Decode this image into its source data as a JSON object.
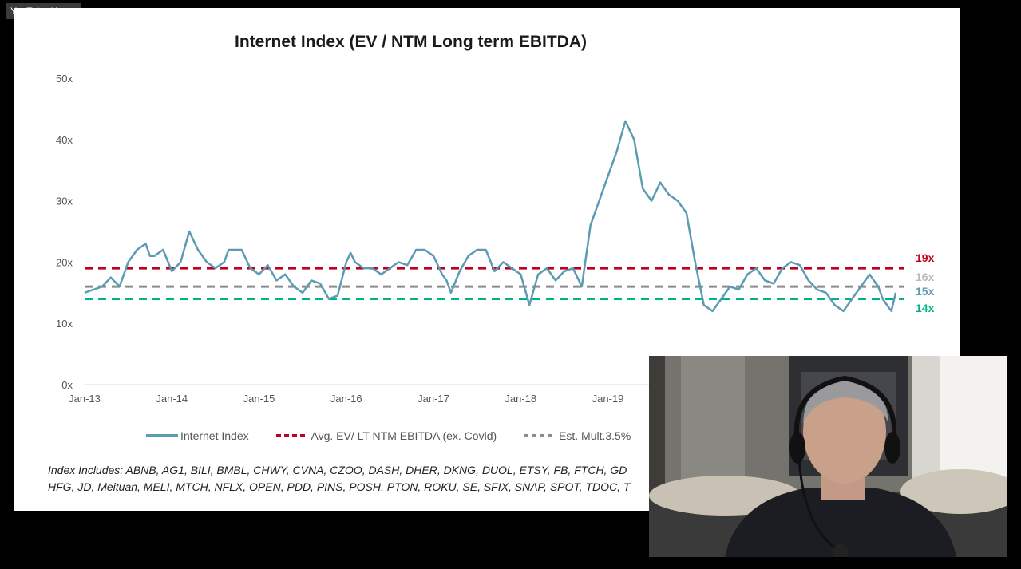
{
  "tooltip": "YouTube Home",
  "chart_data": {
    "type": "line",
    "title": "Internet Index (EV / NTM Long term EBITDA)",
    "ylim": [
      0,
      50
    ],
    "yticks": [
      0,
      10,
      20,
      30,
      40,
      50
    ],
    "ytick_labels": [
      "0x",
      "10x",
      "20x",
      "30x",
      "40x",
      "50x"
    ],
    "xtick_labels": [
      "Jan-13",
      "Jan-14",
      "Jan-15",
      "Jan-16",
      "Jan-17",
      "Jan-18",
      "Jan-19"
    ],
    "xlim": [
      2013.0,
      2022.4
    ],
    "grid": false,
    "legend_position": "bottom",
    "series": [
      {
        "name": "Internet Index",
        "style": "solid",
        "color": "#5b9bb4",
        "x": [
          2013.0,
          2013.1,
          2013.2,
          2013.3,
          2013.4,
          2013.5,
          2013.6,
          2013.7,
          2013.75,
          2013.8,
          2013.9,
          2014.0,
          2014.1,
          2014.2,
          2014.3,
          2014.4,
          2014.5,
          2014.6,
          2014.65,
          2014.7,
          2014.8,
          2014.9,
          2015.0,
          2015.1,
          2015.2,
          2015.3,
          2015.4,
          2015.5,
          2015.6,
          2015.7,
          2015.8,
          2015.9,
          2016.0,
          2016.05,
          2016.1,
          2016.2,
          2016.3,
          2016.4,
          2016.5,
          2016.6,
          2016.7,
          2016.8,
          2016.9,
          2017.0,
          2017.1,
          2017.15,
          2017.2,
          2017.3,
          2017.4,
          2017.5,
          2017.6,
          2017.7,
          2017.8,
          2017.9,
          2018.0,
          2018.1,
          2018.2,
          2018.3,
          2018.4,
          2018.5,
          2018.6,
          2018.7,
          2018.8,
          2018.9,
          2019.0,
          2019.1,
          2019.2,
          2019.3,
          2019.4,
          2019.5,
          2019.6,
          2019.7,
          2019.8,
          2019.9,
          2020.0,
          2020.1,
          2020.2,
          2020.3,
          2020.4,
          2020.5,
          2020.6,
          2020.7,
          2020.8,
          2020.9,
          2021.0,
          2021.1,
          2021.2,
          2021.3,
          2021.4,
          2021.5,
          2021.6,
          2021.7,
          2021.8,
          2021.9,
          2022.0,
          2022.1,
          2022.15,
          2022.2,
          2022.25,
          2022.3
        ],
        "values": [
          15,
          15.5,
          16,
          17.5,
          16,
          20,
          22,
          23,
          21,
          21,
          22,
          18.5,
          20,
          25,
          22,
          20,
          19,
          20,
          22,
          22,
          22,
          19,
          18,
          19.5,
          17,
          18,
          16,
          15,
          17,
          16.5,
          14,
          14.5,
          20,
          21.5,
          20,
          19,
          19,
          18,
          19,
          20,
          19.5,
          22,
          22,
          21,
          18,
          17,
          15,
          18.5,
          21,
          22,
          22,
          18.5,
          20,
          19,
          18,
          13,
          18,
          19,
          17,
          18.5,
          19,
          16,
          26,
          30,
          34,
          38,
          43,
          40,
          32,
          30,
          33,
          31,
          30,
          28,
          20,
          13,
          12,
          14,
          16,
          15.5,
          18,
          19,
          17,
          16.5,
          19,
          20,
          19.5,
          17,
          15.5,
          15,
          13,
          12,
          14,
          16,
          18,
          16,
          14,
          13,
          12,
          15
        ]
      },
      {
        "name": "Avg. EV/ LT NTM EBITDA (ex. Covid)",
        "style": "dashed",
        "color": "#c0001f",
        "value": 19
      },
      {
        "name": "Est. Mult.3.5%",
        "style": "dashed",
        "color": "#8c8c8c",
        "value": 16
      },
      {
        "name": "",
        "style": "dashed",
        "color": "#00b285",
        "value": 14
      }
    ],
    "end_labels": [
      {
        "text": "19x",
        "color": "#c0001f"
      },
      {
        "text": "16x",
        "color": "#b9b9b9"
      },
      {
        "text": "15x",
        "color": "#5b9bb4"
      },
      {
        "text": "14x",
        "color": "#00b285"
      }
    ]
  },
  "legend": {
    "internet_index": "Internet Index",
    "avg": "Avg. EV/ LT NTM EBITDA (ex. Covid)",
    "est": "Est. Mult.3.5%"
  },
  "footnote": {
    "line1": "Index Includes: ABNB, AG1, BILI, BMBL, CHWY, CVNA, CZOO, DASH, DHER, DKNG, DUOL, ETSY, FB, FTCH, GD",
    "line2": "HFG, JD, Meituan, MELI, MTCH, NFLX, OPEN, PDD, PINS, POSH, PTON, ROKU, SE, SFIX, SNAP, SPOT, TDOC, T"
  }
}
